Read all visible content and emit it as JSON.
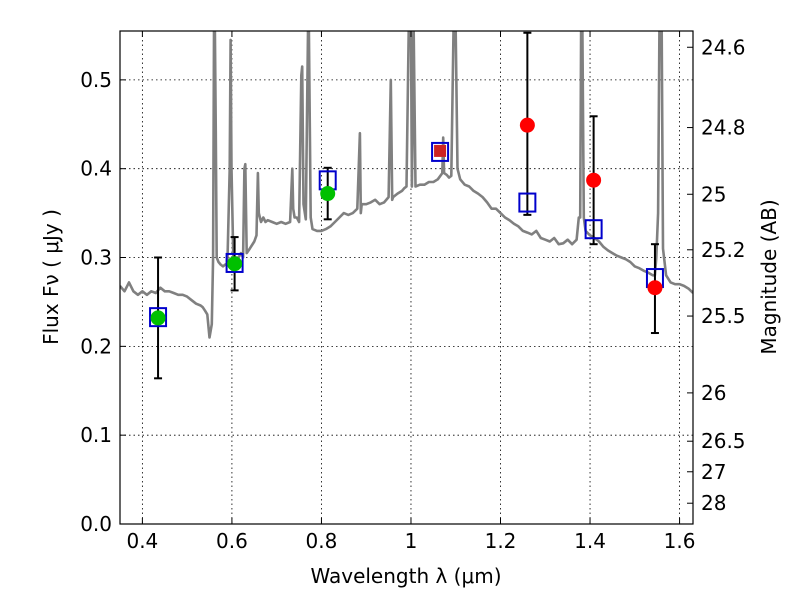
{
  "chart_data": {
    "type": "scatter",
    "xlabel": "Wavelength  λ (μm)",
    "ylabel": "Flux  Fν  ( μJy )",
    "ylabel_right": "Magnitude (AB)",
    "xlim": [
      0.35,
      1.63
    ],
    "ylim": [
      0.0,
      0.555
    ],
    "grid": true,
    "x_ticks": [
      0.4,
      0.6,
      0.8,
      1.0,
      1.2,
      1.4,
      1.6
    ],
    "x_tick_labels": [
      "0.4",
      "0.6",
      "0.8",
      "1",
      "1.2",
      "1.4",
      "1.6"
    ],
    "y_ticks": [
      0.0,
      0.1,
      0.2,
      0.3,
      0.4,
      0.5
    ],
    "y_tick_labels": [
      "0.0",
      "0.1",
      "0.2",
      "0.3",
      "0.4",
      "0.5"
    ],
    "right_ticks": [
      {
        "flux": 0.5367,
        "label": "24.6"
      },
      {
        "flux": 0.4463,
        "label": "24.8"
      },
      {
        "flux": 0.3712,
        "label": "25"
      },
      {
        "flux": 0.3087,
        "label": "25.2"
      },
      {
        "flux": 0.2341,
        "label": "25.5"
      },
      {
        "flux": 0.1476,
        "label": "26"
      },
      {
        "flux": 0.0932,
        "label": "26.5"
      },
      {
        "flux": 0.0588,
        "label": "27"
      },
      {
        "flux": 0.0234,
        "label": "28"
      }
    ],
    "series": [
      {
        "kind": "model_spectrum",
        "color": "#808080",
        "points": [
          [
            0.35,
            0.268
          ],
          [
            0.36,
            0.262
          ],
          [
            0.37,
            0.272
          ],
          [
            0.38,
            0.262
          ],
          [
            0.39,
            0.258
          ],
          [
            0.4,
            0.262
          ],
          [
            0.41,
            0.258
          ],
          [
            0.42,
            0.262
          ],
          [
            0.43,
            0.26
          ],
          [
            0.44,
            0.266
          ],
          [
            0.45,
            0.262
          ],
          [
            0.46,
            0.262
          ],
          [
            0.47,
            0.26
          ],
          [
            0.48,
            0.258
          ],
          [
            0.49,
            0.258
          ],
          [
            0.5,
            0.256
          ],
          [
            0.51,
            0.252
          ],
          [
            0.52,
            0.248
          ],
          [
            0.53,
            0.246
          ],
          [
            0.535,
            0.244
          ],
          [
            0.54,
            0.24
          ],
          [
            0.545,
            0.236
          ],
          [
            0.55,
            0.21
          ],
          [
            0.555,
            0.225
          ],
          [
            0.558,
            0.3
          ],
          [
            0.56,
            0.555
          ],
          [
            0.562,
            0.555
          ],
          [
            0.564,
            0.44
          ],
          [
            0.566,
            0.3
          ],
          [
            0.57,
            0.295
          ],
          [
            0.575,
            0.292
          ],
          [
            0.58,
            0.29
          ],
          [
            0.585,
            0.292
          ],
          [
            0.59,
            0.293
          ],
          [
            0.595,
            0.4
          ],
          [
            0.597,
            0.545
          ],
          [
            0.599,
            0.4
          ],
          [
            0.603,
            0.3
          ],
          [
            0.61,
            0.3
          ],
          [
            0.615,
            0.3
          ],
          [
            0.62,
            0.305
          ],
          [
            0.625,
            0.3
          ],
          [
            0.628,
            0.4
          ],
          [
            0.63,
            0.405
          ],
          [
            0.633,
            0.305
          ],
          [
            0.64,
            0.31
          ],
          [
            0.65,
            0.318
          ],
          [
            0.655,
            0.325
          ],
          [
            0.658,
            0.395
          ],
          [
            0.66,
            0.35
          ],
          [
            0.665,
            0.34
          ],
          [
            0.67,
            0.345
          ],
          [
            0.675,
            0.34
          ],
          [
            0.68,
            0.342
          ],
          [
            0.69,
            0.34
          ],
          [
            0.7,
            0.338
          ],
          [
            0.71,
            0.34
          ],
          [
            0.72,
            0.338
          ],
          [
            0.73,
            0.34
          ],
          [
            0.735,
            0.4
          ],
          [
            0.737,
            0.355
          ],
          [
            0.74,
            0.345
          ],
          [
            0.745,
            0.345
          ],
          [
            0.75,
            0.34
          ],
          [
            0.755,
            0.505
          ],
          [
            0.757,
            0.515
          ],
          [
            0.76,
            0.36
          ],
          [
            0.765,
            0.343
          ],
          [
            0.77,
            0.555
          ],
          [
            0.772,
            0.555
          ],
          [
            0.776,
            0.345
          ],
          [
            0.78,
            0.332
          ],
          [
            0.79,
            0.33
          ],
          [
            0.8,
            0.33
          ],
          [
            0.81,
            0.332
          ],
          [
            0.82,
            0.335
          ],
          [
            0.83,
            0.34
          ],
          [
            0.84,
            0.345
          ],
          [
            0.85,
            0.35
          ],
          [
            0.86,
            0.348
          ],
          [
            0.87,
            0.35
          ],
          [
            0.88,
            0.355
          ],
          [
            0.886,
            0.44
          ],
          [
            0.888,
            0.35
          ],
          [
            0.89,
            0.36
          ],
          [
            0.9,
            0.36
          ],
          [
            0.91,
            0.362
          ],
          [
            0.92,
            0.365
          ],
          [
            0.93,
            0.36
          ],
          [
            0.94,
            0.362
          ],
          [
            0.95,
            0.368
          ],
          [
            0.955,
            0.5
          ],
          [
            0.958,
            0.365
          ],
          [
            0.96,
            0.368
          ],
          [
            0.97,
            0.372
          ],
          [
            0.98,
            0.375
          ],
          [
            0.985,
            0.378
          ],
          [
            0.99,
            0.38
          ],
          [
            0.995,
            0.555
          ],
          [
            1.0,
            0.555
          ],
          [
            1.002,
            0.38
          ],
          [
            1.006,
            0.555
          ],
          [
            1.01,
            0.38
          ],
          [
            1.02,
            0.382
          ],
          [
            1.03,
            0.382
          ],
          [
            1.04,
            0.385
          ],
          [
            1.05,
            0.385
          ],
          [
            1.06,
            0.388
          ],
          [
            1.07,
            0.395
          ],
          [
            1.072,
            0.435
          ],
          [
            1.074,
            0.395
          ],
          [
            1.08,
            0.393
          ],
          [
            1.085,
            0.39
          ],
          [
            1.09,
            0.392
          ],
          [
            1.095,
            0.555
          ],
          [
            1.1,
            0.555
          ],
          [
            1.104,
            0.4
          ],
          [
            1.11,
            0.388
          ],
          [
            1.12,
            0.382
          ],
          [
            1.13,
            0.38
          ],
          [
            1.14,
            0.375
          ],
          [
            1.15,
            0.372
          ],
          [
            1.16,
            0.368
          ],
          [
            1.17,
            0.362
          ],
          [
            1.18,
            0.355
          ],
          [
            1.19,
            0.355
          ],
          [
            1.2,
            0.35
          ],
          [
            1.21,
            0.345
          ],
          [
            1.22,
            0.342
          ],
          [
            1.23,
            0.338
          ],
          [
            1.24,
            0.335
          ],
          [
            1.25,
            0.33
          ],
          [
            1.26,
            0.328
          ],
          [
            1.27,
            0.326
          ],
          [
            1.28,
            0.33
          ],
          [
            1.29,
            0.322
          ],
          [
            1.3,
            0.32
          ],
          [
            1.31,
            0.318
          ],
          [
            1.32,
            0.322
          ],
          [
            1.33,
            0.315
          ],
          [
            1.34,
            0.316
          ],
          [
            1.35,
            0.32
          ],
          [
            1.36,
            0.315
          ],
          [
            1.37,
            0.32
          ],
          [
            1.375,
            0.345
          ],
          [
            1.378,
            0.345
          ],
          [
            1.38,
            0.555
          ],
          [
            1.383,
            0.555
          ],
          [
            1.386,
            0.345
          ],
          [
            1.39,
            0.33
          ],
          [
            1.4,
            0.325
          ],
          [
            1.41,
            0.322
          ],
          [
            1.42,
            0.318
          ],
          [
            1.43,
            0.312
          ],
          [
            1.44,
            0.308
          ],
          [
            1.45,
            0.305
          ],
          [
            1.46,
            0.302
          ],
          [
            1.47,
            0.3
          ],
          [
            1.48,
            0.298
          ],
          [
            1.49,
            0.295
          ],
          [
            1.5,
            0.29
          ],
          [
            1.51,
            0.288
          ],
          [
            1.52,
            0.285
          ],
          [
            1.53,
            0.283
          ],
          [
            1.54,
            0.28
          ],
          [
            1.545,
            0.28
          ],
          [
            1.548,
            0.3
          ],
          [
            1.552,
            0.35
          ],
          [
            1.555,
            0.555
          ],
          [
            1.56,
            0.555
          ],
          [
            1.563,
            0.31
          ],
          [
            1.57,
            0.28
          ],
          [
            1.58,
            0.272
          ],
          [
            1.59,
            0.27
          ],
          [
            1.6,
            0.27
          ],
          [
            1.61,
            0.268
          ],
          [
            1.62,
            0.265
          ],
          [
            1.63,
            0.26
          ]
        ]
      },
      {
        "kind": "observed",
        "points": [
          {
            "x": 0.435,
            "y": 0.232,
            "err": [
              0.164,
              0.3
            ],
            "color": "#00c000"
          },
          {
            "x": 0.606,
            "y": 0.293,
            "err": [
              0.263,
              0.323
            ],
            "color": "#00c000"
          },
          {
            "x": 0.814,
            "y": 0.372,
            "err": [
              0.343,
              0.401
            ],
            "color": "#00c000"
          },
          {
            "x": 1.26,
            "y": 0.449,
            "err": [
              0.348,
              0.553
            ],
            "color": "#ff0000"
          },
          {
            "x": 1.408,
            "y": 0.387,
            "err": [
              0.315,
              0.459
            ],
            "color": "#ff0000"
          },
          {
            "x": 1.545,
            "y": 0.266,
            "err": [
              0.215,
              0.315
            ],
            "color": "#ff0000"
          }
        ]
      },
      {
        "kind": "model_bands",
        "points": [
          {
            "x": 0.435,
            "y": 0.234,
            "color": "#0000cc"
          },
          {
            "x": 0.606,
            "y": 0.295,
            "color": "#0000cc"
          },
          {
            "x": 0.814,
            "y": 0.388,
            "color": "#0000cc"
          },
          {
            "x": 1.065,
            "y": 0.42,
            "color": "#0000cc",
            "fill": "#cc2222"
          },
          {
            "x": 1.26,
            "y": 0.363,
            "color": "#0000cc"
          },
          {
            "x": 1.408,
            "y": 0.333,
            "color": "#0000cc"
          },
          {
            "x": 1.545,
            "y": 0.278,
            "color": "#0000cc"
          }
        ]
      }
    ]
  }
}
